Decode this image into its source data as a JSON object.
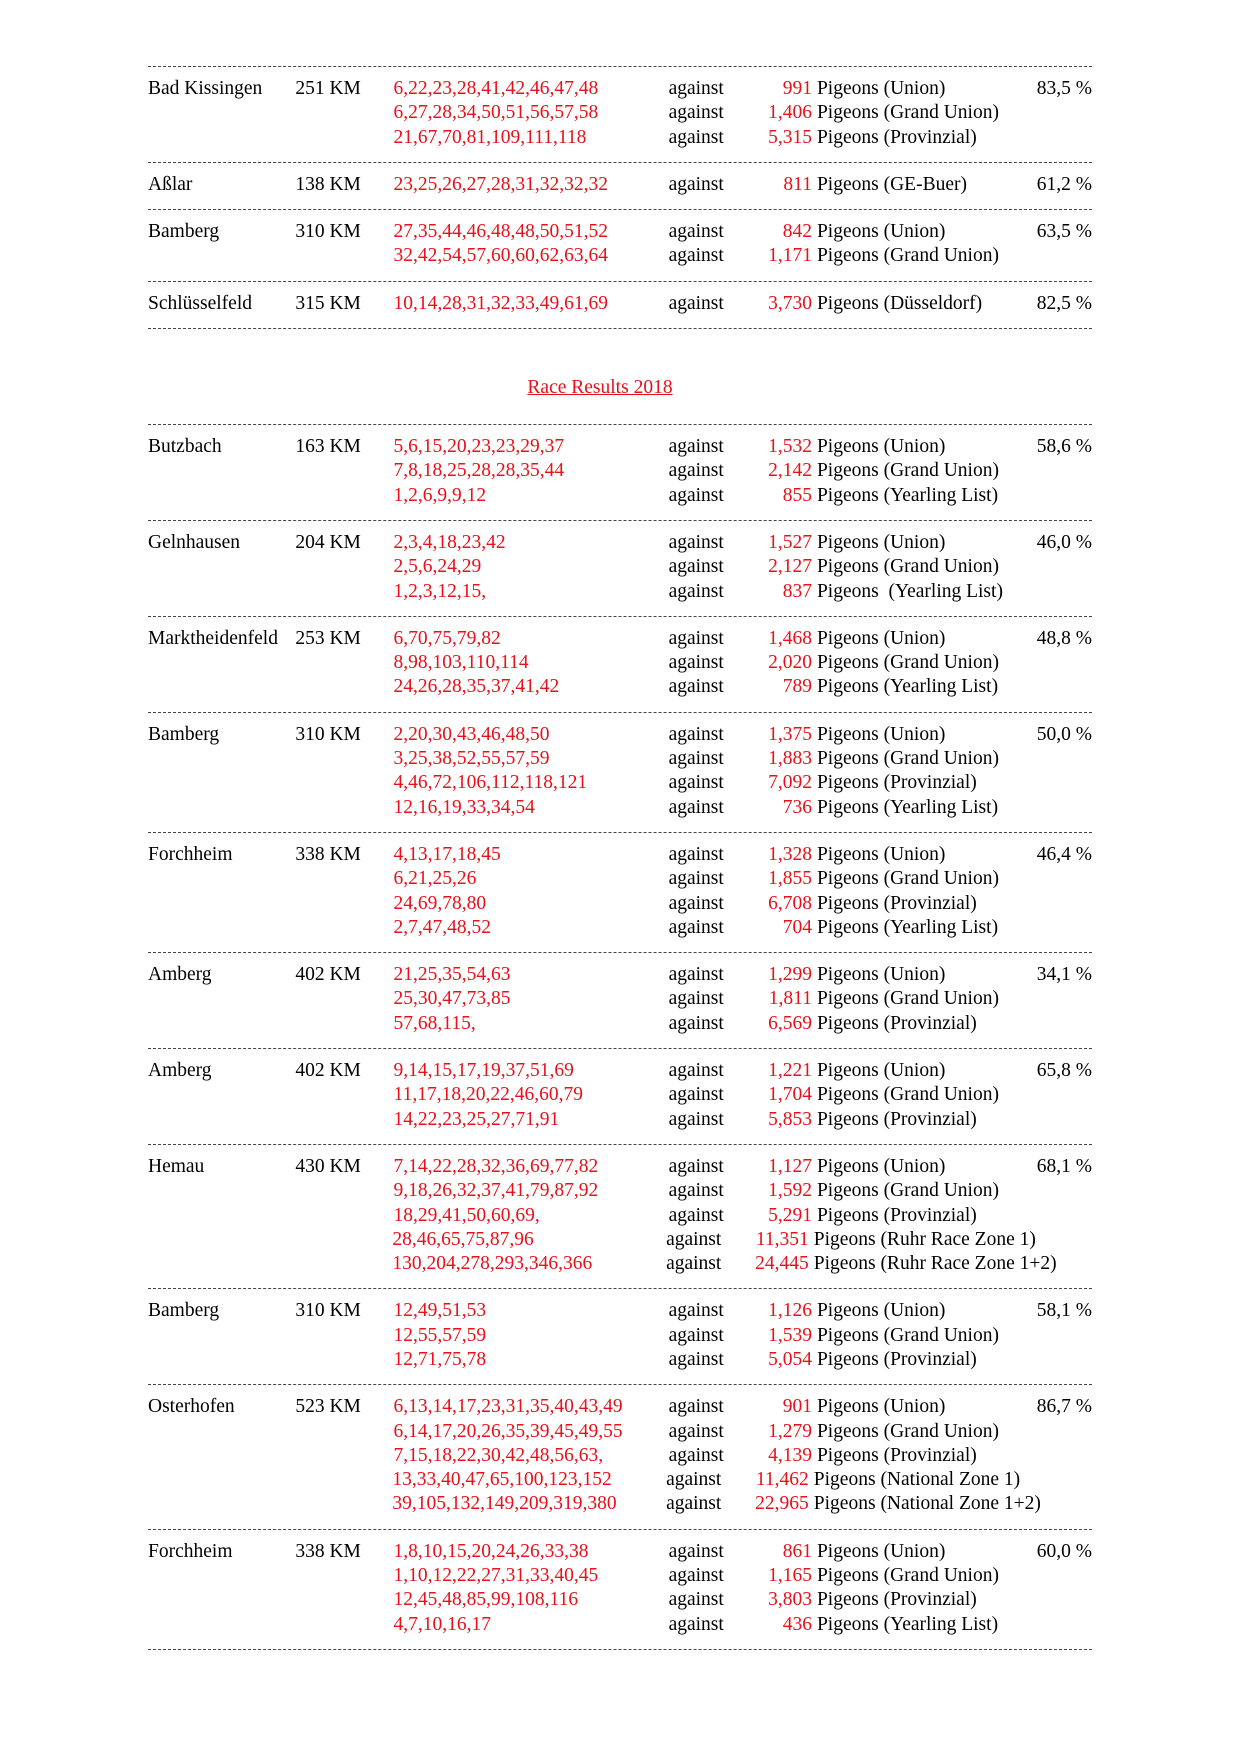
{
  "against_label": "against",
  "pigeons_label": "Pigeons",
  "sections": [
    {
      "title": "",
      "races": [
        {
          "location": "Bad Kissingen",
          "distance": "251 KM",
          "percent": "83,5 %",
          "lines": [
            {
              "places": "6,22,23,28,41,42,46,47,48",
              "count": "991",
              "group": "(Union)"
            },
            {
              "places": "6,27,28,34,50,51,56,57,58",
              "count": "1,406",
              "group": "(Grand Union)"
            },
            {
              "places": "21,67,70,81,109,111,118",
              "count": "5,315",
              "group": "(Provinzial)"
            }
          ]
        },
        {
          "location": "Aßlar",
          "distance": "138 KM",
          "percent": "61,2 %",
          "lines": [
            {
              "places": "23,25,26,27,28,31,32,32,32",
              "count": "811",
              "group": "(GE-Buer)"
            }
          ]
        },
        {
          "location": "Bamberg",
          "distance": "310 KM",
          "percent": "63,5 %",
          "lines": [
            {
              "places": "27,35,44,46,48,48,50,51,52",
              "count": "842",
              "group": "(Union)"
            },
            {
              "places": "32,42,54,57,60,60,62,63,64",
              "count": "1,171",
              "group": "(Grand Union)"
            }
          ]
        },
        {
          "location": "Schlüsselfeld",
          "distance": "315 KM",
          "percent": "82,5 %",
          "lines": [
            {
              "places": "10,14,28,31,32,33,49,61,69",
              "count": "3,730",
              "group": "(Düsseldorf)"
            }
          ]
        }
      ]
    },
    {
      "title": "Race Results  2018",
      "races": [
        {
          "location": "Butzbach",
          "distance": "163 KM",
          "percent": "58,6 %",
          "lines": [
            {
              "places": "5,6,15,20,23,23,29,37",
              "count": "1,532",
              "group": "(Union)"
            },
            {
              "places": "7,8,18,25,28,28,35,44",
              "count": "2,142",
              "group": "(Grand Union)"
            },
            {
              "places": "1,2,6,9,9,12",
              "count": "855",
              "group": "(Yearling List)"
            }
          ]
        },
        {
          "location": "Gelnhausen",
          "distance": "204 KM",
          "percent": "46,0 %",
          "lines": [
            {
              "places": "2,3,4,18,23,42",
              "count": "1,527",
              "group": "(Union)"
            },
            {
              "places": "2,5,6,24,29",
              "count": "2,127",
              "group": "(Grand Union)"
            },
            {
              "places": "1,2,3,12,15,",
              "count": "837",
              "group": " (Yearling List)"
            }
          ]
        },
        {
          "location": "Marktheidenfeld",
          "distance": "253 KM",
          "percent": "48,8 %",
          "lines": [
            {
              "places": "6,70,75,79,82",
              "count": "1,468",
              "group": "(Union)"
            },
            {
              "places": "8,98,103,110,114",
              "count": "2,020",
              "group": "(Grand Union)"
            },
            {
              "places": "24,26,28,35,37,41,42",
              "count": "789",
              "group": "(Yearling List)"
            }
          ]
        },
        {
          "location": "Bamberg",
          "distance": "310 KM",
          "percent": "50,0 %",
          "lines": [
            {
              "places": "2,20,30,43,46,48,50",
              "count": "1,375",
              "group": "(Union)"
            },
            {
              "places": "3,25,38,52,55,57,59",
              "count": "1,883",
              "group": "(Grand Union)"
            },
            {
              "places": "4,46,72,106,112,118,121",
              "count": "7,092",
              "group": "(Provinzial)"
            },
            {
              "places": "12,16,19,33,34,54",
              "count": "736",
              "group": "(Yearling List)"
            }
          ]
        },
        {
          "location": "Forchheim",
          "distance": "338 KM",
          "percent": "46,4 %",
          "lines": [
            {
              "places": "4,13,17,18,45",
              "count": "1,328",
              "group": "(Union)"
            },
            {
              "places": "6,21,25,26",
              "count": "1,855",
              "group": "(Grand Union)"
            },
            {
              "places": "24,69,78,80",
              "count": "6,708",
              "group": "(Provinzial)"
            },
            {
              "places": "2,7,47,48,52",
              "count": "704",
              "group": "(Yearling List)"
            }
          ]
        },
        {
          "location": "Amberg",
          "distance": "402 KM",
          "percent": "34,1 %",
          "lines": [
            {
              "places": "21,25,35,54,63",
              "count": "1,299",
              "group": "(Union)"
            },
            {
              "places": "25,30,47,73,85",
              "count": "1,811",
              "group": "(Grand Union)"
            },
            {
              "places": "57,68,115,",
              "count": "6,569",
              "group": "(Provinzial)"
            }
          ]
        },
        {
          "location": "Amberg",
          "distance": "402 KM",
          "percent": "65,8 %",
          "lines": [
            {
              "places": "9,14,15,17,19,37,51,69",
              "count": "1,221",
              "group": "(Union)"
            },
            {
              "places": "11,17,18,20,22,46,60,79",
              "count": "1,704",
              "group": "(Grand Union)"
            },
            {
              "places": "14,22,23,25,27,71,91",
              "count": "5,853",
              "group": "(Provinzial)"
            }
          ]
        },
        {
          "location": "Hemau",
          "distance": "430 KM",
          "percent": "68,1 %",
          "lines": [
            {
              "places": "7,14,22,28,32,36,69,77,82",
              "count": "1,127",
              "group": "(Union)"
            },
            {
              "places": "9,18,26,32,37,41,79,87,92",
              "count": "1,592",
              "group": "(Grand Union)"
            },
            {
              "places": "18,29,41,50,60,69,",
              "count": "5,291",
              "group": "(Provinzial)"
            },
            {
              "places": "28,46,65,75,87,96",
              "count": "11,351",
              "group": "(Ruhr Race Zone 1)"
            },
            {
              "places": "130,204,278,293,346,366",
              "count": "24,445",
              "group": "(Ruhr Race Zone 1+2)"
            }
          ]
        },
        {
          "location": "Bamberg",
          "distance": "310 KM",
          "percent": "58,1 %",
          "lines": [
            {
              "places": "12,49,51,53",
              "count": "1,126",
              "group": "(Union)"
            },
            {
              "places": "12,55,57,59",
              "count": "1,539",
              "group": "(Grand Union)"
            },
            {
              "places": "12,71,75,78",
              "count": "5,054",
              "group": "(Provinzial)"
            }
          ]
        },
        {
          "location": "Osterhofen",
          "distance": "523 KM",
          "percent": "86,7 %",
          "lines": [
            {
              "places": "6,13,14,17,23,31,35,40,43,49",
              "count": "901",
              "group": "(Union)"
            },
            {
              "places": "6,14,17,20,26,35,39,45,49,55",
              "count": "1,279",
              "group": "(Grand Union)"
            },
            {
              "places": "7,15,18,22,30,42,48,56,63,",
              "count": "4,139",
              "group": "(Provinzial)"
            },
            {
              "places": "13,33,40,47,65,100,123,152",
              "count": "11,462",
              "group": "(National Zone 1)"
            },
            {
              "places": "39,105,132,149,209,319,380",
              "count": "22,965",
              "group": "(National Zone 1+2)"
            }
          ]
        },
        {
          "location": "Forchheim",
          "distance": "338 KM",
          "percent": "60,0 %",
          "lines": [
            {
              "places": "1,8,10,15,20,24,26,33,38",
              "count": "861",
              "group": "(Union)"
            },
            {
              "places": "1,10,12,22,27,31,33,40,45",
              "count": "1,165",
              "group": "(Grand Union)"
            },
            {
              "places": "12,45,48,85,99,108,116",
              "count": "3,803",
              "group": "(Provinzial)"
            },
            {
              "places": "4,7,10,16,17",
              "count": "436",
              "group": "(Yearling List)"
            }
          ]
        }
      ]
    }
  ]
}
